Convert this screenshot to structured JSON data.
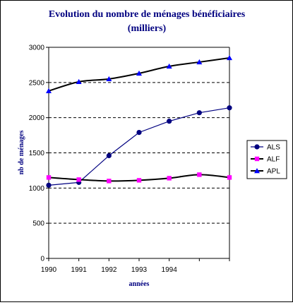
{
  "chart_data": {
    "type": "line",
    "title_line1": "Evolution du nombre de ménages bénéficiaires",
    "title_line2": "(milliers)",
    "xlabel": "années",
    "ylabel": "nb de ménages",
    "categories": [
      "1990",
      "1991",
      "1992",
      "1993",
      "1994",
      "",
      ""
    ],
    "ylim": [
      0,
      3000
    ],
    "yticks": [
      0,
      500,
      1000,
      1500,
      2000,
      2500,
      3000
    ],
    "grid": "horizontal dashed",
    "legend_position": "right",
    "series": [
      {
        "name": "ALS",
        "color": "#000080",
        "marker": "circle",
        "values": [
          1040,
          1080,
          1460,
          1790,
          1950,
          2070,
          2140
        ]
      },
      {
        "name": "ALF",
        "color": "#000000",
        "marker_color": "#ff00ff",
        "marker": "square",
        "values": [
          1150,
          1120,
          1100,
          1110,
          1140,
          1190,
          1150
        ]
      },
      {
        "name": "APL",
        "color": "#000000",
        "marker_color": "#0000ff",
        "marker": "triangle",
        "values": [
          2380,
          2510,
          2550,
          2630,
          2730,
          2790,
          2850
        ]
      }
    ]
  }
}
